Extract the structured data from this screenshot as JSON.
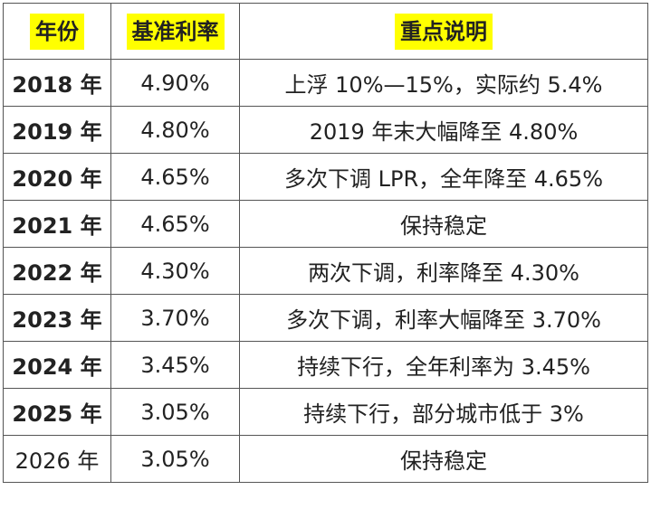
{
  "headers": {
    "year": "年份",
    "rate": "基准利率",
    "note": "重点说明"
  },
  "rows": [
    {
      "year": "2018 年",
      "rate": "4.90%",
      "note": "上浮 10%—15%，实际约 5.4%"
    },
    {
      "year": "2019 年",
      "rate": "4.80%",
      "note": "2019 年末大幅降至 4.80%"
    },
    {
      "year": "2020 年",
      "rate": "4.65%",
      "note": "多次下调 LPR，全年降至 4.65%"
    },
    {
      "year": "2021 年",
      "rate": "4.65%",
      "note": "保持稳定"
    },
    {
      "year": "2022 年",
      "rate": "4.30%",
      "note": "两次下调，利率降至 4.30%"
    },
    {
      "year": "2023 年",
      "rate": "3.70%",
      "note": "多次下调，利率大幅降至 3.70%"
    },
    {
      "year": "2024 年",
      "rate": "3.45%",
      "note": "持续下行，全年利率为 3.45%"
    },
    {
      "year": "2025 年",
      "rate": "3.05%",
      "note": "持续下行，部分城市低于 3%"
    },
    {
      "year": "2026 年",
      "rate": "3.05%",
      "note": "保持稳定"
    }
  ],
  "colors": {
    "header_highlight": "#ffff00",
    "border": "#555555",
    "text": "#222222"
  }
}
